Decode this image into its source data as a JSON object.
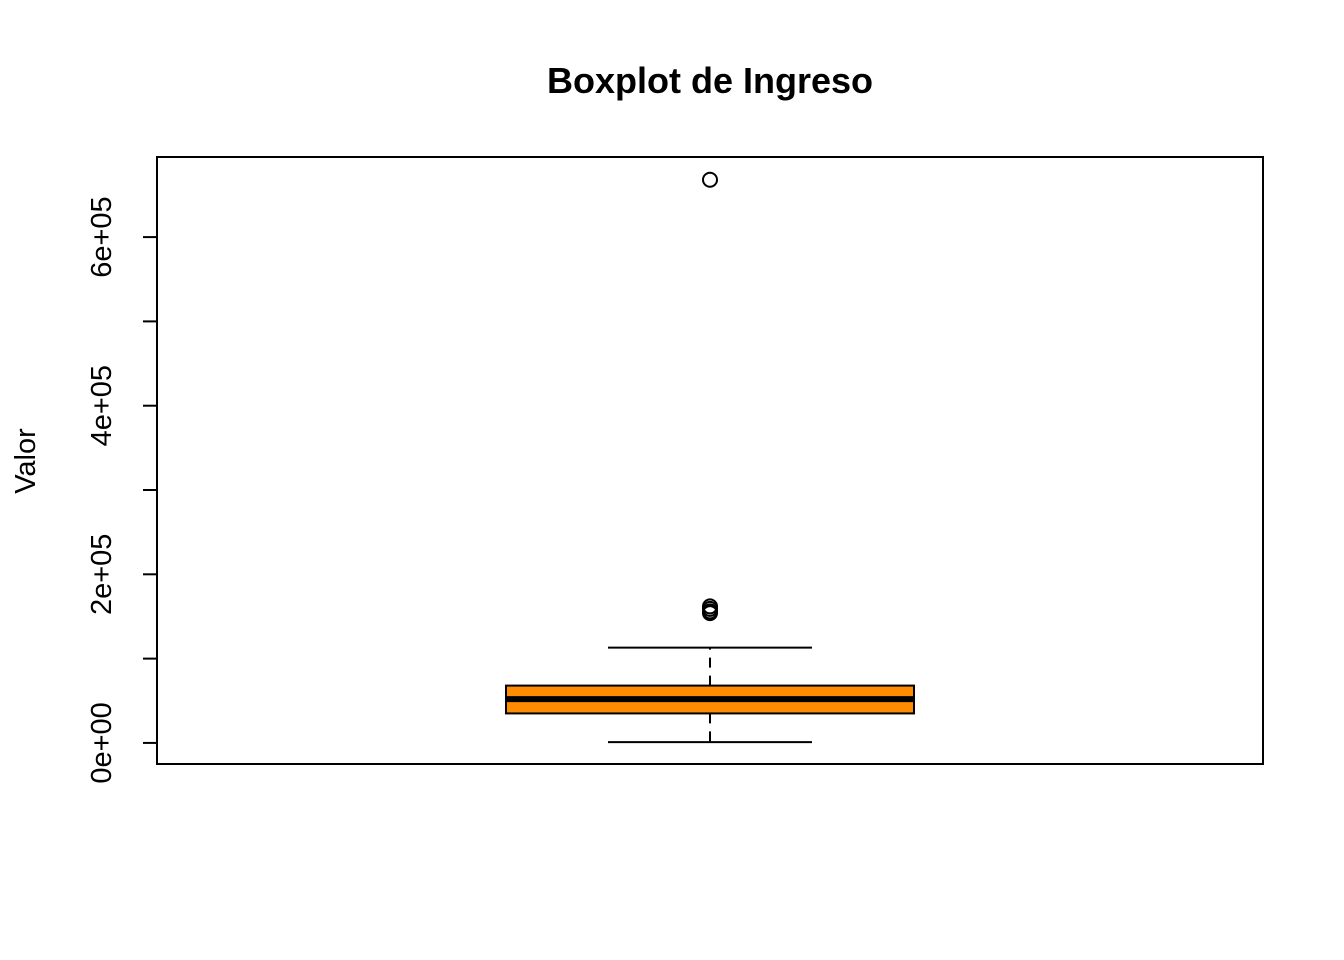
{
  "chart_data": {
    "type": "boxplot",
    "title": "Boxplot de Ingreso",
    "xlabel": "",
    "ylabel": "Valor",
    "ylim": [
      -25000,
      695000
    ],
    "y_ticks": [
      0,
      100000,
      200000,
      300000,
      400000,
      500000,
      600000
    ],
    "y_tick_labels": [
      {
        "value": 0,
        "label": "0e+00"
      },
      {
        "value": 200000,
        "label": "2e+05"
      },
      {
        "value": 400000,
        "label": "4e+05"
      },
      {
        "value": 600000,
        "label": "6e+05"
      }
    ],
    "grid": false,
    "legend": "none",
    "box": {
      "whisker_low": 1000,
      "q1": 35000,
      "median": 52000,
      "q3": 68000,
      "whisker_high": 113000,
      "fill": "#ff8c00",
      "border": "#000000"
    },
    "outliers": [
      668000,
      162000,
      159000,
      156000,
      154000
    ]
  }
}
